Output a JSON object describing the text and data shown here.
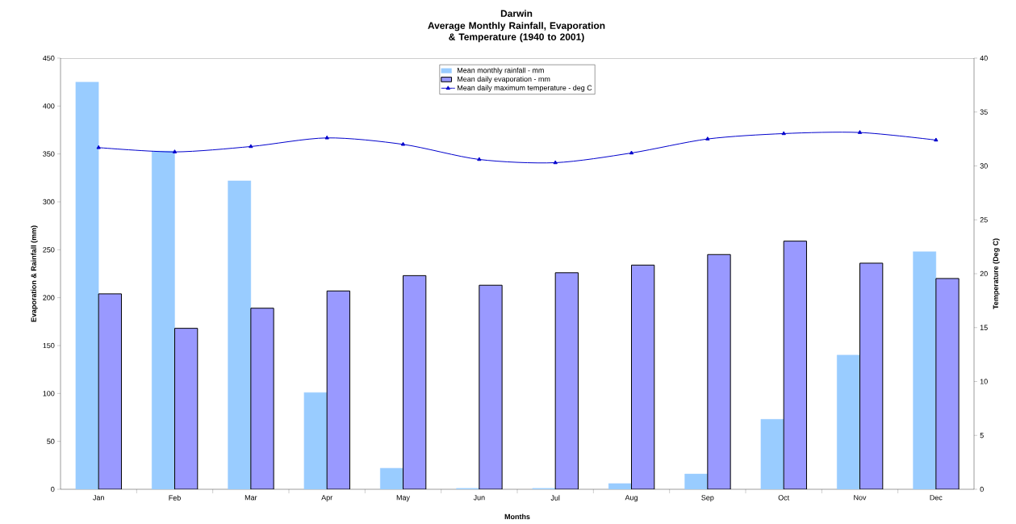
{
  "chart_data": {
    "type": "bar",
    "title": "Darwin",
    "subtitle": "Average Monthly Rainfall, Evaporation & Temperature (1940 to 2001)",
    "xlabel": "Months",
    "ylabel": "Evaporation & Rainfall (mm)",
    "y2label": "Temperature (Deg C)",
    "categories": [
      "Jan",
      "Feb",
      "Mar",
      "Apr",
      "May",
      "Jun",
      "Jul",
      "Aug",
      "Sep",
      "Oct",
      "Nov",
      "Dec"
    ],
    "series": [
      {
        "name": "Mean monthly rainfall - mm",
        "color": "#99ccff",
        "values": [
          425,
          353,
          322,
          101,
          22,
          1,
          1,
          6,
          16,
          73,
          140,
          248
        ]
      },
      {
        "name": "Mean daily evaporation - mm",
        "color": "#9999ff",
        "values": [
          204,
          168,
          189,
          207,
          223,
          213,
          226,
          234,
          245,
          259,
          236,
          220
        ]
      },
      {
        "name": "Mean daily maximum temperature - deg C",
        "type": "line",
        "axis": "y2",
        "color": "#0000cc",
        "marker": "triangle",
        "values": [
          31.7,
          31.3,
          31.8,
          32.6,
          32.0,
          30.6,
          30.3,
          31.2,
          32.5,
          33.0,
          33.1,
          32.4
        ]
      }
    ],
    "ylim": [
      0,
      450
    ],
    "yticks": [
      0,
      50,
      100,
      150,
      200,
      250,
      300,
      350,
      400,
      450
    ],
    "y2lim": [
      0,
      40
    ],
    "y2ticks": [
      0,
      5,
      10,
      15,
      20,
      25,
      30,
      35,
      40
    ],
    "legend": "top",
    "grid": false
  }
}
